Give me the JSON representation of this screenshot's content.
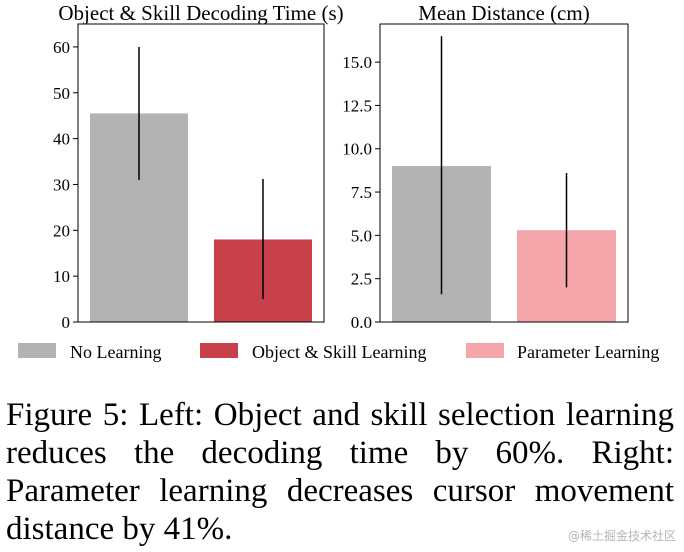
{
  "chart_data": [
    {
      "type": "bar",
      "title": "Object & Skill Decoding Time (s)",
      "categories": [
        "No Learning",
        "Object & Skill Learning"
      ],
      "values": [
        45.5,
        18.0
      ],
      "error_low": [
        31.0,
        5.0
      ],
      "error_high": [
        60.0,
        31.2
      ],
      "colors": [
        "#b3b3b3",
        "#c8414a"
      ],
      "ylim": [
        0,
        65
      ],
      "yticks": [
        "0",
        "10",
        "20",
        "30",
        "40",
        "50",
        "60"
      ],
      "ytick_values": [
        0,
        10,
        20,
        30,
        40,
        50,
        60
      ],
      "grid": false
    },
    {
      "type": "bar",
      "title": "Mean Distance (cm)",
      "categories": [
        "No Learning",
        "Parameter Learning"
      ],
      "values": [
        9.0,
        5.3
      ],
      "error_low": [
        1.6,
        2.0
      ],
      "error_high": [
        16.5,
        8.6
      ],
      "colors": [
        "#b3b3b3",
        "#f4a6ab"
      ],
      "ylim": [
        0,
        17.2
      ],
      "yticks": [
        "0.0",
        "2.5",
        "5.0",
        "7.5",
        "10.0",
        "12.5",
        "15.0"
      ],
      "ytick_values": [
        0,
        2.5,
        5,
        7.5,
        10,
        12.5,
        15
      ],
      "grid": false
    }
  ],
  "legend": {
    "placement": "bottom",
    "entries": [
      {
        "label": "No Learning",
        "color": "#b3b3b3"
      },
      {
        "label": "Object & Skill Learning",
        "color": "#c8414a"
      },
      {
        "label": "Parameter Learning",
        "color": "#f4a6ab"
      }
    ]
  },
  "caption": "Figure 5: Left: Object and skill selection learning reduces the decoding time by 60%. Right: Parameter learning decreases cursor movement distance by 41%.",
  "watermark": "@稀土掘金技术社区"
}
